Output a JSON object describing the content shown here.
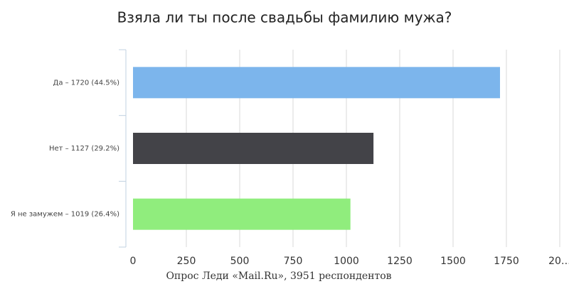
{
  "chart_data": {
    "type": "hbar",
    "title": "Взяла ли ты после свадьбы фамилию мужа?",
    "source": "Опрос Леди «Mail.Ru», 3951 респондентов",
    "categories": [
      "Да – 1720 (44.5%)",
      "Нет – 1127 (29.2%)",
      "Я не замужем – 1019 (26.4%)"
    ],
    "values": [
      1720,
      1127,
      1019
    ],
    "colors": [
      "#7cb5ec",
      "#434348",
      "#90ed7d"
    ],
    "xlim": [
      0,
      2000
    ],
    "xticks": [
      0,
      250,
      500,
      750,
      1000,
      1250,
      1500,
      1750,
      {
        "value": 2000,
        "label": "20…"
      }
    ],
    "grid": true
  }
}
